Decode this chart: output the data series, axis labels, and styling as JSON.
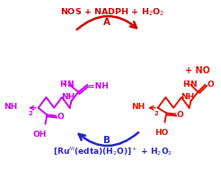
{
  "bg": "#ffffff",
  "mc": "#cc00ee",
  "rc": "#dd1100",
  "ac": "#cc0000",
  "bc": "#2222cc",
  "top_text": "NOS + NADPH + H$_2$O$_2$",
  "bottom_text": "[Ru$^{\\mathbf{III}}$(edta)(H$_2$O)]$^+$ + H$_2$O$_2$",
  "label_A": "A",
  "label_B": "B",
  "plus_NO": "+ NO"
}
